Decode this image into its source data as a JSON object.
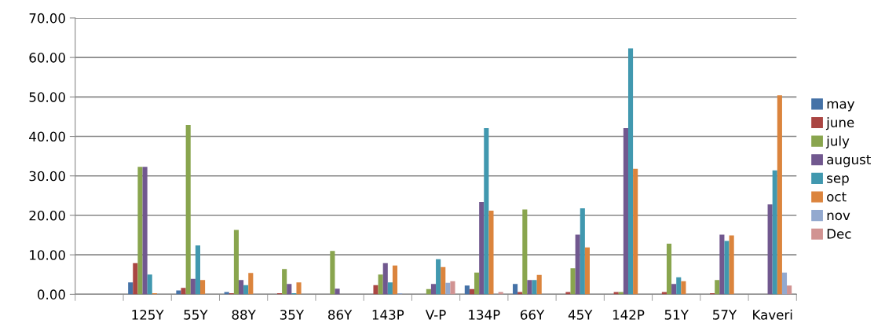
{
  "chart_data": {
    "type": "bar",
    "categories": [
      null,
      "125Y",
      "55Y",
      "88Y",
      "35Y",
      "86Y",
      "143P",
      "V-P",
      "134P",
      "66Y",
      "45Y",
      "142P",
      "51Y",
      "57Y",
      "Kaveri"
    ],
    "series": [
      {
        "name": "may",
        "color": "#4572a7",
        "values": [
          null,
          3.0,
          1.0,
          0.6,
          0,
          0,
          0,
          0,
          2.2,
          2.6,
          0,
          0,
          0,
          0,
          0
        ]
      },
      {
        "name": "june",
        "color": "#aa4643",
        "values": [
          null,
          7.9,
          1.6,
          0.3,
          0.3,
          0,
          2.3,
          0,
          1.3,
          0.6,
          0.6,
          0.6,
          0.6,
          0.3,
          0
        ]
      },
      {
        "name": "july",
        "color": "#89a54e",
        "values": [
          null,
          32.3,
          42.9,
          16.3,
          6.4,
          11.0,
          5.0,
          1.3,
          5.5,
          21.5,
          6.6,
          0.6,
          12.8,
          3.6,
          0
        ]
      },
      {
        "name": "august",
        "color": "#71588f",
        "values": [
          null,
          32.3,
          3.9,
          3.6,
          2.6,
          1.4,
          7.9,
          2.6,
          23.4,
          3.6,
          15.1,
          42.1,
          2.6,
          15.1,
          22.8
        ]
      },
      {
        "name": "sep",
        "color": "#4198af",
        "values": [
          null,
          5.0,
          12.4,
          2.3,
          0.3,
          0,
          3.0,
          8.9,
          42.1,
          3.6,
          21.8,
          62.3,
          4.3,
          13.5,
          31.4
        ]
      },
      {
        "name": "oct",
        "color": "#db843d",
        "values": [
          null,
          0.3,
          3.6,
          5.4,
          3.0,
          0,
          7.3,
          6.9,
          21.2,
          4.9,
          11.9,
          31.8,
          3.3,
          14.9,
          50.4
        ]
      },
      {
        "name": "nov",
        "color": "#93a9cf",
        "values": [
          null,
          0,
          0,
          0,
          0,
          0,
          0.3,
          2.9,
          0,
          0,
          0,
          0,
          0,
          0,
          5.5
        ]
      },
      {
        "name": "Dec",
        "color": "#d19392",
        "values": [
          null,
          0,
          0,
          0,
          0,
          0,
          0,
          3.3,
          0.6,
          0,
          0,
          0,
          0,
          0,
          2.2
        ]
      }
    ],
    "ylim": [
      0,
      70
    ],
    "yticks": [
      {
        "value": 0,
        "label": "0.00"
      },
      {
        "value": 10,
        "label": "10.00"
      },
      {
        "value": 20,
        "label": "20.00"
      },
      {
        "value": 30,
        "label": "30.00"
      },
      {
        "value": 40,
        "label": "40.00"
      },
      {
        "value": 50,
        "label": "50.00"
      },
      {
        "value": 60,
        "label": "60.00"
      },
      {
        "value": 70,
        "label": "70.00"
      }
    ],
    "grid": "y",
    "legend": "right"
  }
}
